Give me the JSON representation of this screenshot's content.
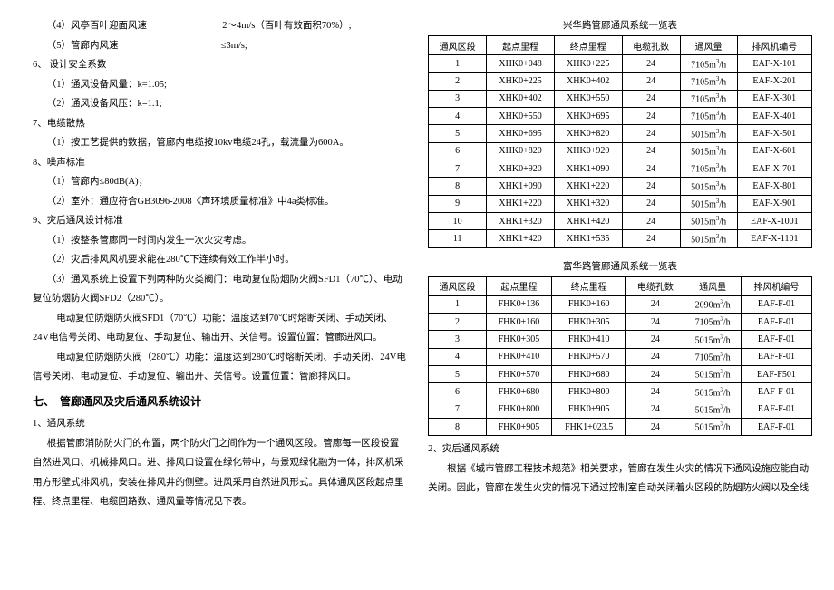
{
  "left": {
    "l1": "（4）风亭百叶迎面风速",
    "l1b": "2～4m/s（百叶有效面积70%）;",
    "l2": "（5）管廊内风速",
    "l2b": "≤3m/s;",
    "l3": "6、 设计安全系数",
    "l4": "（1）通风设备风量：k=1.05;",
    "l5": "（2）通风设备风压：k=1.1;",
    "l6": "7、电缆散热",
    "l7": "（1）按工艺提供的数据，管廊内电缆按10kv电缆24孔，载流量为600A。",
    "l8": "8、噪声标准",
    "l9": "（1）管廊内≤80dB(A)；",
    "l10": "（2）室外：通应符合GB3096-2008《声环境质量标准》中4a类标准。",
    "l11": "9、灾后通风设计标准",
    "l12": "（1）按整条管廊同一时间内发生一次火灾考虑。",
    "l13": "（2）灾后排风风机要求能在280℃下连续有效工作半小时。",
    "l14": "（3）通风系统上设置下列两种防火类阀门：电动复位防烟防火阀SFD1（70℃）、电动复位防烟防火阀SFD2（280℃）。",
    "l15": "电动复位防烟防火阀SFD1（70℃）功能：温度达到70℃时熔断关闭、手动关闭、24V电信号关闭、电动复位、手动复位、输出开、关信号。设置位置：管廊进风口。",
    "l16": "电动复位防烟防火阀（280℃）功能：温度达到280℃时熔断关闭、手动关闭、24V电信号关闭、电动复位、手动复位、输出开、关信号。设置位置：管廊排风口。",
    "sec": "七、　管廊通风及灾后通风系统设计",
    "l17": "1、通风系统",
    "l18": "根据管廊消防防火门的布置，两个防火门之间作为一个通风区段。管廊每一区段设置自然进风口、机械排风口。进、排风口设置在绿化带中，与景观绿化融为一体，排风机采用方形壁式排风机，安装在排风井的侧壁。进风采用自然进风形式。具体通风区段起点里程、终点里程、电缆回路数、通风量等情况见下表。"
  },
  "table1": {
    "title": "兴华路管廊通风系统一览表",
    "headers": [
      "通风区段",
      "起点里程",
      "终点里程",
      "电缆孔数",
      "通风量",
      "排风机编号"
    ],
    "unit_prefix": "m",
    "unit_suffix": "/h",
    "rows": [
      [
        "1",
        "XHK0+048",
        "XHK0+225",
        "24",
        "7105",
        "EAF-X-101"
      ],
      [
        "2",
        "XHK0+225",
        "XHK0+402",
        "24",
        "7105",
        "EAF-X-201"
      ],
      [
        "3",
        "XHK0+402",
        "XHK0+550",
        "24",
        "7105",
        "EAF-X-301"
      ],
      [
        "4",
        "XHK0+550",
        "XHK0+695",
        "24",
        "7105",
        "EAF-X-401"
      ],
      [
        "5",
        "XHK0+695",
        "XHK0+820",
        "24",
        "5015",
        "EAF-X-501"
      ],
      [
        "6",
        "XHK0+820",
        "XHK0+920",
        "24",
        "5015",
        "EAF-X-601"
      ],
      [
        "7",
        "XHK0+920",
        "XHK1+090",
        "24",
        "7105",
        "EAF-X-701"
      ],
      [
        "8",
        "XHK1+090",
        "XHK1+220",
        "24",
        "5015",
        "EAF-X-801"
      ],
      [
        "9",
        "XHK1+220",
        "XHK1+320",
        "24",
        "5015",
        "EAF-X-901"
      ],
      [
        "10",
        "XHK1+320",
        "XHK1+420",
        "24",
        "5015",
        "EAF-X-1001"
      ],
      [
        "11",
        "XHK1+420",
        "XHK1+535",
        "24",
        "5015",
        "EAF-X-1101"
      ]
    ]
  },
  "table2": {
    "title": "富华路管廊通风系统一览表",
    "headers": [
      "通风区段",
      "起点里程",
      "终点里程",
      "电缆孔数",
      "通风量",
      "排风机编号"
    ],
    "rows": [
      [
        "1",
        "FHK0+136",
        "FHK0+160",
        "24",
        "2090",
        "EAF-F-01"
      ],
      [
        "2",
        "FHK0+160",
        "FHK0+305",
        "24",
        "7105",
        "EAF-F-01"
      ],
      [
        "3",
        "FHK0+305",
        "FHK0+410",
        "24",
        "5015",
        "EAF-F-01"
      ],
      [
        "4",
        "FHK0+410",
        "FHK0+570",
        "24",
        "7105",
        "EAF-F-01"
      ],
      [
        "5",
        "FHK0+570",
        "FHK0+680",
        "24",
        "5015",
        "EAF-F501"
      ],
      [
        "6",
        "FHK0+680",
        "FHK0+800",
        "24",
        "5015",
        "EAF-F-01"
      ],
      [
        "7",
        "FHK0+800",
        "FHK0+905",
        "24",
        "5015",
        "EAF-F-01"
      ],
      [
        "8",
        "FHK0+905",
        "FHK1+023.5",
        "24",
        "5015",
        "EAF-F-01"
      ]
    ]
  },
  "right": {
    "p1": "2、灾后通风系统",
    "p2": "根据《城市管廊工程技术规范》相关要求，管廊在发生火灾的情况下通风设施应能自动关闭。因此，管廊在发生火灾的情况下通过控制室自动关闭着火区段的防烟防火阀以及全线"
  }
}
